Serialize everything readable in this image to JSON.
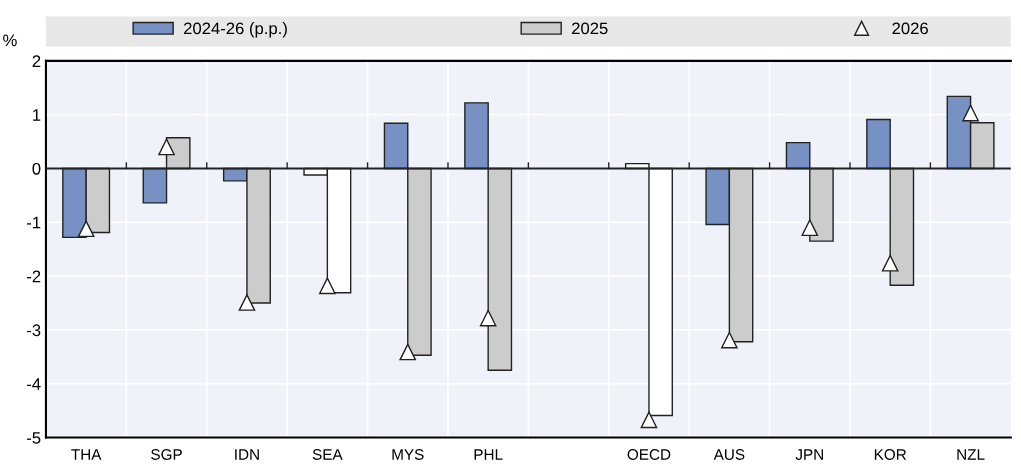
{
  "chart_data": {
    "type": "bar",
    "ylabel": "%",
    "categories": [
      "THA",
      "SGP",
      "IDN",
      "SEA",
      "MYS",
      "PHL",
      null,
      "OECD",
      "AUS",
      "JPN",
      "KOR",
      "NZL"
    ],
    "series": [
      {
        "name": "2024-26 (p.p.)",
        "color": "#7891c4",
        "colors": [
          "#7891c4",
          "#7891c4",
          "#7891c4",
          "#ffffff",
          "#7891c4",
          "#7891c4",
          "#7891c4",
          "#ffffff",
          "#7891c4",
          "#7891c4",
          "#7891c4",
          "#7891c4"
        ],
        "values": [
          -1.28,
          -0.64,
          -0.23,
          -0.12,
          0.84,
          1.22,
          null,
          0.09,
          -1.04,
          0.48,
          0.91,
          1.34
        ]
      },
      {
        "name": "2025",
        "color": "#cccccc",
        "colors": [
          "#cccccc",
          "#cccccc",
          "#cccccc",
          "#ffffff",
          "#cccccc",
          "#cccccc",
          "#cccccc",
          "#ffffff",
          "#cccccc",
          "#cccccc",
          "#cccccc",
          "#cccccc"
        ],
        "values": [
          -1.19,
          0.57,
          -2.5,
          -2.31,
          -3.47,
          -3.75,
          null,
          -4.59,
          -3.22,
          -1.35,
          -2.17,
          0.85
        ]
      },
      {
        "name": "2026",
        "type": "scatter",
        "marker": "triangle",
        "color": "#ffffff",
        "values": [
          -1.12,
          0.4,
          -2.49,
          -2.18,
          -3.41,
          -2.78,
          null,
          -4.67,
          -3.19,
          -1.1,
          -1.76,
          1.03
        ]
      }
    ],
    "ylim": [
      -5,
      2
    ],
    "yticks": [
      -5,
      -4,
      -3,
      -2,
      -1,
      0,
      1,
      2
    ],
    "grid": true,
    "legend": "top"
  }
}
